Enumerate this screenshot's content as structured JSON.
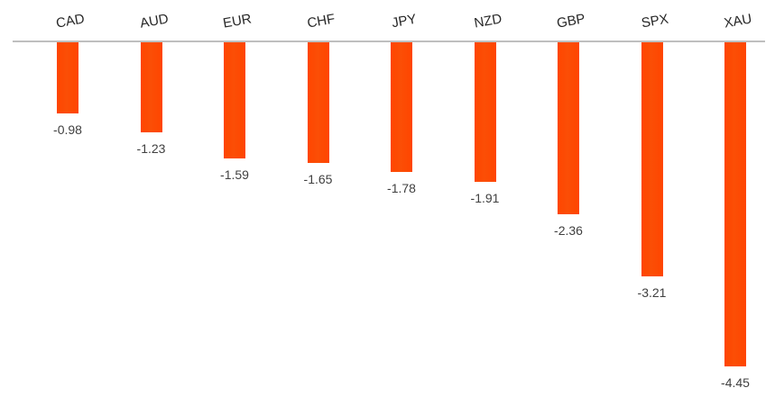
{
  "chart_data": {
    "type": "bar",
    "title": "",
    "xlabel": "",
    "ylabel": "",
    "categories": [
      "CAD",
      "AUD",
      "EUR",
      "CHF",
      "JPY",
      "NZD",
      "GBP",
      "SPX",
      "XAU"
    ],
    "values": [
      -0.98,
      -1.23,
      -1.59,
      -1.65,
      -1.78,
      -1.91,
      -2.36,
      -3.21,
      -4.45
    ],
    "data_labels": [
      "-0.98",
      "-1.23",
      "-1.59",
      "-1.65",
      "-1.78",
      "-1.91",
      "-2.36",
      "-3.21",
      "-4.45"
    ],
    "ylim": [
      -5,
      0
    ],
    "grid": false,
    "legend": null,
    "category_labels_rotated": true,
    "bar_color": "#FF4500",
    "axis_line_color": "#BFBFBF",
    "category_label_color": "#262626",
    "value_label_color": "#404040",
    "background_color": "#FFFFFF"
  }
}
